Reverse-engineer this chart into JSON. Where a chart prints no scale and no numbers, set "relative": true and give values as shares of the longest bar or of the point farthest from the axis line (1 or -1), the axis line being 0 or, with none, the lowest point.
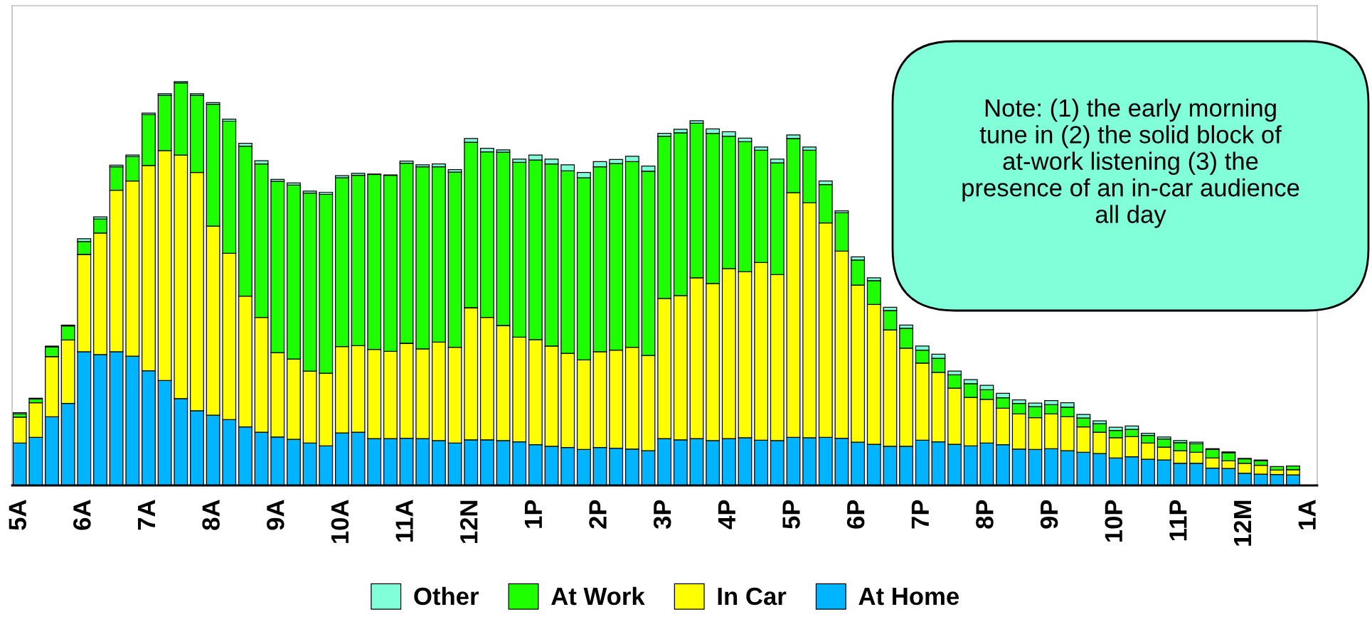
{
  "chart_data": {
    "type": "bar",
    "stacked": true,
    "relative": true,
    "legend": "bottom",
    "grid": false,
    "categories": [
      "5A",
      null,
      null,
      null,
      "6A",
      null,
      null,
      null,
      "7A",
      null,
      null,
      null,
      "8A",
      null,
      null,
      null,
      "9A",
      null,
      null,
      null,
      "10A",
      null,
      null,
      null,
      "11A",
      null,
      null,
      null,
      "12N",
      null,
      null,
      null,
      "1P",
      null,
      null,
      null,
      "2P",
      null,
      null,
      null,
      "3P",
      null,
      null,
      null,
      "4P",
      null,
      null,
      null,
      "5P",
      null,
      null,
      null,
      "6P",
      null,
      null,
      null,
      "7P",
      null,
      null,
      null,
      "8P",
      null,
      null,
      null,
      "9P",
      null,
      null,
      null,
      "10P",
      null,
      null,
      null,
      "11P",
      null,
      null,
      null,
      "12M",
      null,
      null,
      null,
      "1A"
    ],
    "series": [
      {
        "name": "At Home",
        "color": "#00b4ff",
        "values": [
          0.105,
          0.119,
          0.17,
          0.203,
          0.331,
          0.324,
          0.331,
          0.32,
          0.284,
          0.26,
          0.215,
          0.185,
          0.174,
          0.163,
          0.145,
          0.132,
          0.12,
          0.114,
          0.105,
          0.098,
          0.13,
          0.132,
          0.116,
          0.116,
          0.117,
          0.116,
          0.111,
          0.105,
          0.113,
          0.113,
          0.111,
          0.108,
          0.101,
          0.097,
          0.094,
          0.089,
          0.094,
          0.092,
          0.09,
          0.086,
          0.116,
          0.113,
          0.116,
          0.111,
          0.116,
          0.118,
          0.112,
          0.111,
          0.119,
          0.118,
          0.119,
          0.117,
          0.107,
          0.102,
          0.097,
          0.097,
          0.112,
          0.108,
          0.102,
          0.098,
          0.105,
          0.101,
          0.09,
          0.089,
          0.091,
          0.086,
          0.082,
          0.079,
          0.068,
          0.071,
          0.065,
          0.063,
          0.055,
          0.055,
          0.043,
          0.042,
          0.03,
          0.028,
          0.027,
          0.026,
          null
        ]
      },
      {
        "name": "In Car",
        "color": "#ffff00",
        "values": [
          0.064,
          0.086,
          0.149,
          0.157,
          0.241,
          0.301,
          0.4,
          0.434,
          0.508,
          0.569,
          0.603,
          0.59,
          0.468,
          0.412,
          0.324,
          0.284,
          0.209,
          0.199,
          0.178,
          0.18,
          0.214,
          0.214,
          0.221,
          0.216,
          0.235,
          0.222,
          0.244,
          0.237,
          0.327,
          0.303,
          0.285,
          0.259,
          0.26,
          0.248,
          0.233,
          0.222,
          0.237,
          0.243,
          0.252,
          0.236,
          0.347,
          0.357,
          0.398,
          0.389,
          0.421,
          0.411,
          0.44,
          0.411,
          0.606,
          0.582,
          0.531,
          0.463,
          0.389,
          0.346,
          0.288,
          0.243,
          0.191,
          0.172,
          0.139,
          0.12,
          0.108,
          0.09,
          0.087,
          0.079,
          0.086,
          0.084,
          0.063,
          0.053,
          0.05,
          0.05,
          0.04,
          0.032,
          0.031,
          0.027,
          0.025,
          0.019,
          0.025,
          0.022,
          0.011,
          0.013,
          null
        ]
      },
      {
        "name": "At Work",
        "color": "#1eff00",
        "values": [
          0.008,
          0.009,
          0.024,
          0.035,
          0.032,
          0.035,
          0.058,
          0.06,
          0.126,
          0.137,
          0.179,
          0.191,
          0.302,
          0.327,
          0.371,
          0.38,
          0.424,
          0.431,
          0.441,
          0.443,
          0.418,
          0.422,
          0.433,
          0.436,
          0.446,
          0.451,
          0.434,
          0.434,
          0.41,
          0.41,
          0.429,
          0.433,
          0.445,
          0.451,
          0.452,
          0.451,
          0.458,
          0.462,
          0.46,
          0.456,
          0.402,
          0.403,
          0.383,
          0.372,
          0.328,
          0.322,
          0.278,
          0.277,
          0.134,
          0.13,
          0.095,
          0.095,
          0.062,
          0.059,
          0.048,
          0.049,
          0.032,
          0.035,
          0.033,
          0.034,
          0.024,
          0.026,
          0.026,
          0.027,
          0.023,
          0.024,
          0.022,
          0.021,
          0.018,
          0.018,
          0.019,
          0.02,
          0.02,
          0.021,
          0.021,
          0.02,
          0.011,
          0.011,
          0.009,
          0.009,
          null
        ]
      },
      {
        "name": "Other",
        "color": "#80ffd9",
        "values": [
          0.003,
          0.002,
          0.002,
          0.002,
          0.007,
          0.005,
          0.004,
          0.004,
          0.004,
          0.004,
          0.003,
          0.004,
          0.004,
          0.005,
          0.007,
          0.008,
          0.005,
          0.005,
          0.005,
          0.005,
          0.005,
          0.005,
          0.001,
          0.001,
          0.005,
          0.005,
          0.007,
          0.006,
          0.009,
          0.009,
          0.006,
          0.008,
          0.012,
          0.012,
          0.015,
          0.013,
          0.013,
          0.01,
          0.013,
          0.013,
          0.007,
          0.009,
          0.006,
          0.011,
          0.011,
          0.009,
          0.008,
          0.009,
          0.009,
          0.008,
          0.009,
          0.005,
          0.008,
          0.007,
          0.008,
          0.008,
          0.01,
          0.01,
          0.009,
          0.01,
          0.011,
          0.011,
          0.009,
          0.009,
          0.01,
          0.011,
          0.009,
          0.007,
          0.008,
          0.008,
          0.005,
          0.005,
          0.005,
          0.004,
          0.002,
          0.002,
          0.001,
          0.002,
          null,
          null,
          null
        ]
      }
    ],
    "annotations": [
      "Note: (1) the early morning tune in (2) the solid block of at-work listening (3) the presence of an in-car audience all day"
    ]
  }
}
